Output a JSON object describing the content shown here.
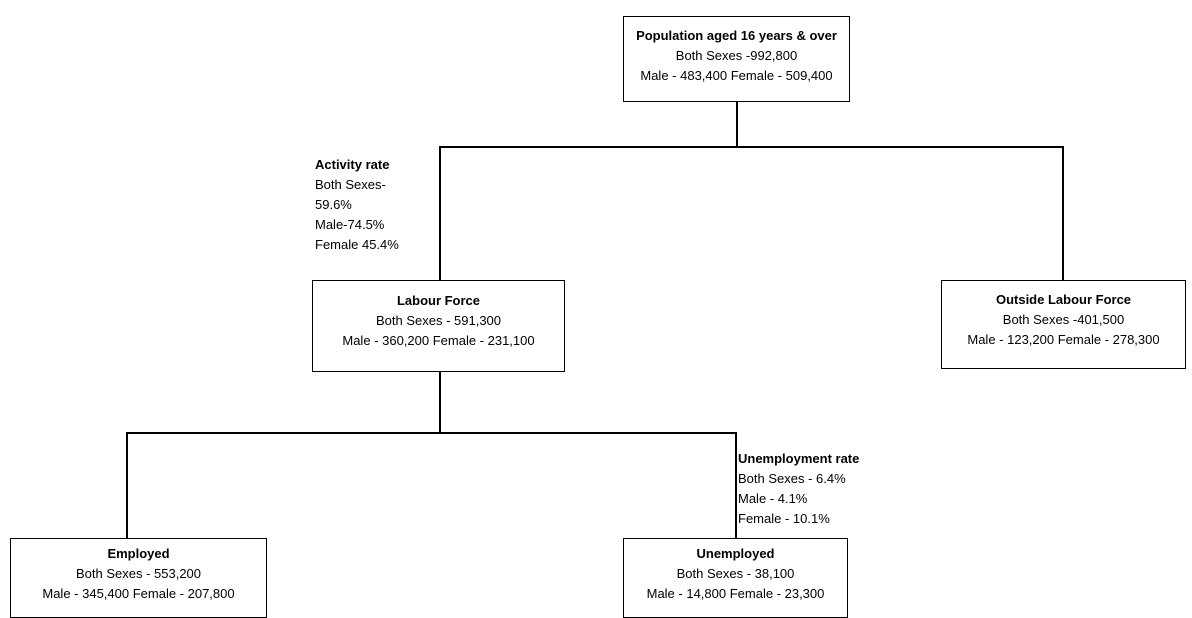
{
  "population": {
    "title": "Population aged 16 years & over",
    "both": "Both Sexes -992,800",
    "split": "Male - 483,400  Female - 509,400"
  },
  "activity_rate": {
    "title": "Activity rate",
    "lines": [
      "Both Sexes-",
      "59.6%",
      "Male-74.5%",
      "Female 45.4%"
    ]
  },
  "labour_force": {
    "title": "Labour Force",
    "both": "Both Sexes - 591,300",
    "split": "Male - 360,200 Female - 231,100"
  },
  "outside_labour_force": {
    "title": "Outside Labour Force",
    "both": "Both Sexes -401,500",
    "split": "Male - 123,200  Female - 278,300"
  },
  "unemployment_rate": {
    "title": "Unemployment rate",
    "lines": [
      "Both Sexes - 6.4%",
      "Male - 4.1%",
      "Female - 10.1%"
    ]
  },
  "employed": {
    "title": "Employed",
    "both": "Both Sexes - 553,200",
    "split": "Male - 345,400 Female - 207,800"
  },
  "unemployed": {
    "title": "Unemployed",
    "both": "Both Sexes - 38,100",
    "split": "Male - 14,800  Female - 23,300"
  }
}
